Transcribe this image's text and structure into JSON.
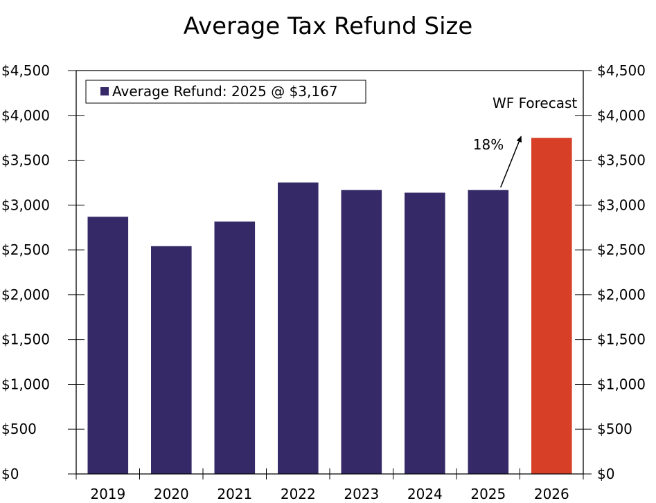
{
  "chart_data": {
    "type": "bar",
    "title": "Average Tax Refund Size",
    "categories": [
      "2019",
      "2020",
      "2021",
      "2022",
      "2023",
      "2024",
      "2025",
      "2026"
    ],
    "series": [
      {
        "name": "Average Refund: 2025 @ $3,167",
        "values": [
          2869,
          2541,
          2815,
          3252,
          3167,
          3138,
          3167,
          3750
        ],
        "colors": [
          "#352a67",
          "#352a67",
          "#352a67",
          "#352a67",
          "#352a67",
          "#352a67",
          "#352a67",
          "#d73f27"
        ]
      }
    ],
    "ylim": [
      0,
      4500
    ],
    "yticks": [
      0,
      500,
      1000,
      1500,
      2000,
      2500,
      3000,
      3500,
      4000,
      4500
    ],
    "ytick_labels": [
      "$0",
      "$500",
      "$1,000",
      "$1,500",
      "$2,000",
      "$2,500",
      "$3,000",
      "$3,500",
      "$4,000",
      "$4,500"
    ],
    "legend_position": "top-left",
    "grid": false,
    "annotations": [
      {
        "text": "WF Forecast",
        "target": "2026"
      },
      {
        "text": "18%",
        "arrow_from": {
          "x": "2025",
          "y": 3167
        },
        "arrow_to": {
          "x": "2026",
          "y": 3750
        }
      }
    ]
  },
  "colors": {
    "bar": "#352a67",
    "forecast_bar": "#d73f27",
    "axis": "#000000"
  }
}
